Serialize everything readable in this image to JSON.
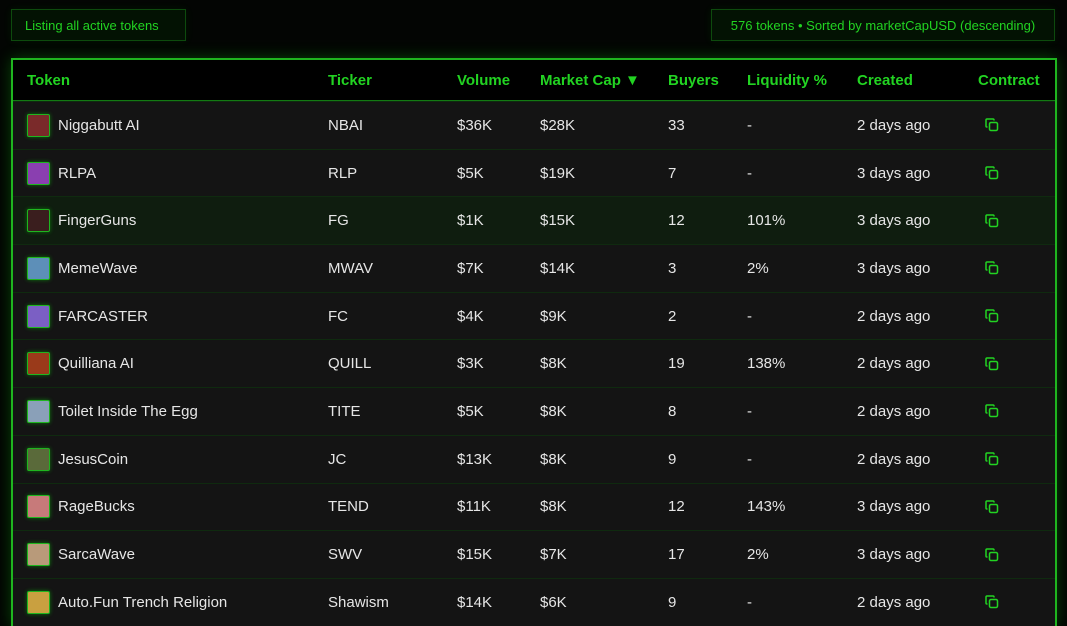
{
  "header": {
    "left_badge": "Listing all active tokens",
    "right_badge": "576 tokens • Sorted by marketCapUSD (descending)"
  },
  "columns": [
    "Token",
    "Ticker",
    "Volume",
    "Market Cap ▼",
    "Buyers",
    "Liquidity %",
    "Created",
    "Contract"
  ],
  "colors": {
    "accent": "#22d322",
    "row": "#141414",
    "highlight_row": "#0f1d0f"
  },
  "rows": [
    {
      "name": "Niggabutt AI",
      "ticker": "NBAI",
      "volume": "$36K",
      "mcap": "$28K",
      "buyers": "33",
      "liq": "-",
      "created": "2 days ago",
      "avatar": "#7a2a2a"
    },
    {
      "name": "RLPA",
      "ticker": "RLP",
      "volume": "$5K",
      "mcap": "$19K",
      "buyers": "7",
      "liq": "-",
      "created": "3 days ago",
      "avatar": "#8a3fb0"
    },
    {
      "name": "FingerGuns",
      "ticker": "FG",
      "volume": "$1K",
      "mcap": "$15K",
      "buyers": "12",
      "liq": "101%",
      "created": "3 days ago",
      "avatar": "#3a1e1e"
    },
    {
      "name": "MemeWave",
      "ticker": "MWAV",
      "volume": "$7K",
      "mcap": "$14K",
      "buyers": "3",
      "liq": "2%",
      "created": "3 days ago",
      "avatar": "#5d8fb8"
    },
    {
      "name": "FARCASTER",
      "ticker": "FC",
      "volume": "$4K",
      "mcap": "$9K",
      "buyers": "2",
      "liq": "-",
      "created": "2 days ago",
      "avatar": "#7b5fc4"
    },
    {
      "name": "Quilliana AI",
      "ticker": "QUILL",
      "volume": "$3K",
      "mcap": "$8K",
      "buyers": "19",
      "liq": "138%",
      "created": "2 days ago",
      "avatar": "#9a3a1a"
    },
    {
      "name": "Toilet Inside The Egg",
      "ticker": "TITE",
      "volume": "$5K",
      "mcap": "$8K",
      "buyers": "8",
      "liq": "-",
      "created": "2 days ago",
      "avatar": "#8aa0b8"
    },
    {
      "name": "JesusCoin",
      "ticker": "JC",
      "volume": "$13K",
      "mcap": "$8K",
      "buyers": "9",
      "liq": "-",
      "created": "2 days ago",
      "avatar": "#5a6a3a"
    },
    {
      "name": "RageBucks",
      "ticker": "TEND",
      "volume": "$11K",
      "mcap": "$8K",
      "buyers": "12",
      "liq": "143%",
      "created": "3 days ago",
      "avatar": "#c77a7a"
    },
    {
      "name": "SarcaWave",
      "ticker": "SWV",
      "volume": "$15K",
      "mcap": "$7K",
      "buyers": "17",
      "liq": "2%",
      "created": "3 days ago",
      "avatar": "#b89a7a"
    },
    {
      "name": "Auto.Fun Trench Religion",
      "ticker": "Shawism",
      "volume": "$14K",
      "mcap": "$6K",
      "buyers": "9",
      "liq": "-",
      "created": "2 days ago",
      "avatar": "#c9a040"
    }
  ]
}
